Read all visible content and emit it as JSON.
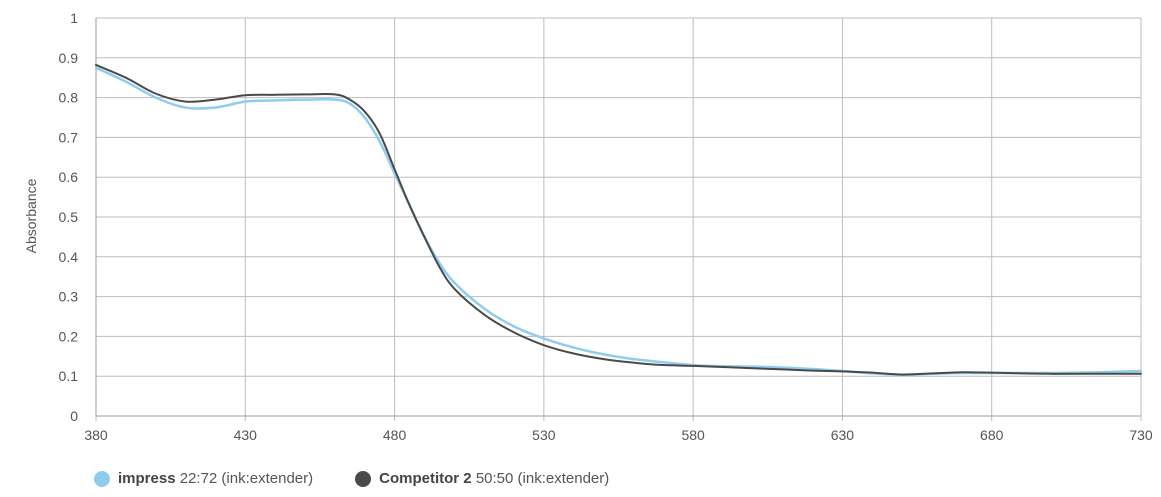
{
  "chart_data": {
    "type": "line",
    "title": "",
    "xlabel": "",
    "ylabel": "Absorbance",
    "xlim": [
      380,
      730
    ],
    "ylim": [
      0,
      1
    ],
    "x_ticks": [
      380,
      430,
      480,
      530,
      580,
      630,
      680,
      730
    ],
    "y_ticks": [
      0,
      0.1,
      0.2,
      0.3,
      0.4,
      0.5,
      0.6,
      0.7,
      0.8,
      0.9,
      1
    ],
    "y_tick_labels": [
      "0",
      "0.1",
      "0.2",
      "0.3",
      "0.4",
      "0.5",
      "0.6",
      "0.7",
      "0.8",
      "0.9",
      "1"
    ],
    "grid": true,
    "legend_position": "bottom-left",
    "series": [
      {
        "name": "impress",
        "name_suffix": "22:72 (ink:extender)",
        "color": "#8ecdef",
        "x": [
          380,
          390,
          400,
          410,
          420,
          430,
          440,
          450,
          460,
          465,
          470,
          475,
          480,
          485,
          490,
          495,
          500,
          510,
          520,
          530,
          540,
          550,
          560,
          570,
          580,
          590,
          600,
          610,
          620,
          630,
          640,
          650,
          660,
          670,
          680,
          690,
          700,
          710,
          720,
          730
        ],
        "y": [
          0.875,
          0.84,
          0.8,
          0.775,
          0.775,
          0.79,
          0.793,
          0.795,
          0.795,
          0.785,
          0.75,
          0.69,
          0.61,
          0.53,
          0.45,
          0.385,
          0.335,
          0.27,
          0.225,
          0.195,
          0.172,
          0.155,
          0.143,
          0.135,
          0.128,
          0.125,
          0.124,
          0.122,
          0.118,
          0.113,
          0.107,
          0.104,
          0.106,
          0.108,
          0.108,
          0.108,
          0.108,
          0.109,
          0.111,
          0.113
        ]
      },
      {
        "name": "Competitor 2",
        "name_suffix": "50:50 (ink:extender)",
        "color": "#4a4a4a",
        "x": [
          380,
          390,
          400,
          410,
          420,
          430,
          440,
          450,
          460,
          465,
          470,
          475,
          480,
          485,
          490,
          495,
          500,
          510,
          520,
          530,
          540,
          550,
          560,
          570,
          580,
          590,
          600,
          610,
          620,
          630,
          640,
          650,
          660,
          670,
          680,
          690,
          700,
          710,
          720,
          730
        ],
        "y": [
          0.882,
          0.85,
          0.81,
          0.79,
          0.795,
          0.806,
          0.807,
          0.808,
          0.808,
          0.795,
          0.765,
          0.71,
          0.62,
          0.53,
          0.45,
          0.375,
          0.32,
          0.255,
          0.21,
          0.178,
          0.157,
          0.143,
          0.134,
          0.128,
          0.126,
          0.123,
          0.12,
          0.117,
          0.114,
          0.112,
          0.109,
          0.104,
          0.107,
          0.11,
          0.109,
          0.107,
          0.106,
          0.106,
          0.106,
          0.106
        ]
      }
    ]
  }
}
